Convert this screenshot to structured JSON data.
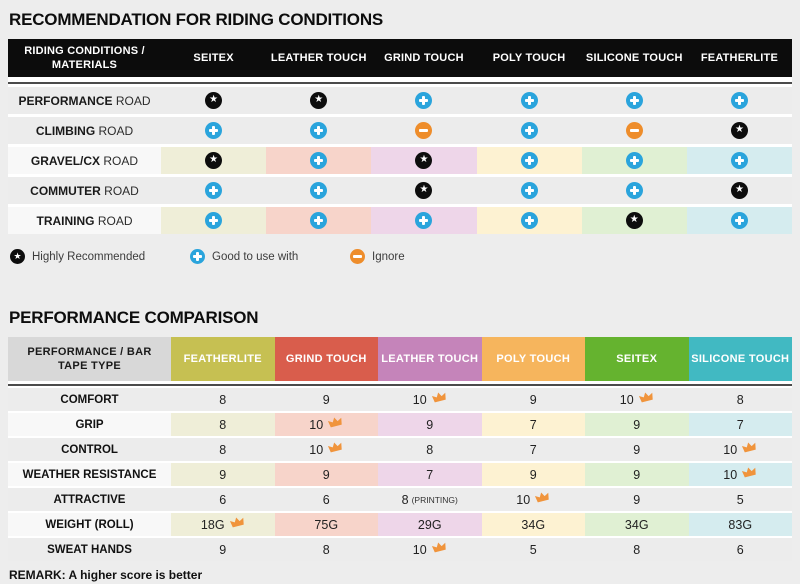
{
  "chart_data": [
    {
      "type": "table",
      "title": "RECOMMENDATION FOR RIDING CONDITIONS",
      "corner_label": "RIDING CONDITIONS / MATERIALS",
      "columns": [
        "SEITEX",
        "LEATHER TOUCH",
        "GRIND TOUCH",
        "POLY TOUCH",
        "SILICONE TOUCH",
        "FEATHERLITE"
      ],
      "rows": [
        {
          "label": "PERFORMANCE ROAD",
          "tinted": false,
          "values": [
            "star",
            "star",
            "plus",
            "plus",
            "plus",
            "plus"
          ]
        },
        {
          "label": "CLIMBING ROAD",
          "tinted": false,
          "values": [
            "plus",
            "plus",
            "minus",
            "plus",
            "minus",
            "star"
          ]
        },
        {
          "label": "GRAVEL/CX ROAD",
          "tinted": true,
          "values": [
            "star",
            "plus",
            "star",
            "plus",
            "plus",
            "plus"
          ]
        },
        {
          "label": "COMMUTER ROAD",
          "tinted": false,
          "values": [
            "plus",
            "plus",
            "star",
            "plus",
            "plus",
            "star"
          ]
        },
        {
          "label": "TRAINING ROAD",
          "tinted": true,
          "values": [
            "plus",
            "plus",
            "plus",
            "plus",
            "star",
            "plus"
          ]
        }
      ],
      "tint_colors": [
        "#efeed8",
        "#f7d4ca",
        "#eed6e9",
        "#fdf2d2",
        "#e0f0d3",
        "#d5ecef"
      ],
      "symbol_legend": [
        {
          "symbol": "star",
          "label": "Highly Recommended",
          "color": "#0d0d0d"
        },
        {
          "symbol": "plus",
          "label": "Good to use with",
          "color": "#2aa4dc"
        },
        {
          "symbol": "minus",
          "label": "Ignore",
          "color": "#ee8d2b"
        }
      ]
    },
    {
      "type": "table",
      "title": "PERFORMANCE COMPARISON",
      "corner_label": "PERFORMANCE / BAR TAPE TYPE",
      "columns": [
        {
          "label": "FEATHERLITE",
          "color": "#c6c052",
          "tint": "#efeed8"
        },
        {
          "label": "GRIND TOUCH",
          "color": "#d95d4c",
          "tint": "#f7d4ca"
        },
        {
          "label": "LEATHER TOUCH",
          "color": "#c584ba",
          "tint": "#eed6e9"
        },
        {
          "label": "POLY TOUCH",
          "color": "#f6b55d",
          "tint": "#fdf2d2"
        },
        {
          "label": "SEITEX",
          "color": "#65b32f",
          "tint": "#e0f0d3"
        },
        {
          "label": "SILICONE TOUCH",
          "color": "#41b9c2",
          "tint": "#d5ecef"
        }
      ],
      "best_marker": "crown",
      "best_marker_color": "#f0943c",
      "rows": [
        {
          "label": "COMFORT",
          "tinted": false,
          "cells": [
            {
              "value": "8"
            },
            {
              "value": "9"
            },
            {
              "value": "10",
              "best": true
            },
            {
              "value": "9"
            },
            {
              "value": "10",
              "best": true
            },
            {
              "value": "8"
            }
          ]
        },
        {
          "label": "GRIP",
          "tinted": true,
          "cells": [
            {
              "value": "8"
            },
            {
              "value": "10",
              "best": true
            },
            {
              "value": "9"
            },
            {
              "value": "7"
            },
            {
              "value": "9"
            },
            {
              "value": "7"
            }
          ]
        },
        {
          "label": "CONTROL",
          "tinted": false,
          "cells": [
            {
              "value": "8"
            },
            {
              "value": "10",
              "best": true
            },
            {
              "value": "8"
            },
            {
              "value": "7"
            },
            {
              "value": "9"
            },
            {
              "value": "10",
              "best": true
            }
          ]
        },
        {
          "label": "WEATHER RESISTANCE",
          "tinted": true,
          "cells": [
            {
              "value": "9"
            },
            {
              "value": "9"
            },
            {
              "value": "7"
            },
            {
              "value": "9"
            },
            {
              "value": "9"
            },
            {
              "value": "10",
              "best": true
            }
          ]
        },
        {
          "label": "ATTRACTIVE",
          "tinted": false,
          "cells": [
            {
              "value": "6"
            },
            {
              "value": "6"
            },
            {
              "value": "8",
              "note": "(PRINTING)"
            },
            {
              "value": "10",
              "best": true
            },
            {
              "value": "9"
            },
            {
              "value": "5"
            }
          ]
        },
        {
          "label": "WEIGHT (ROLL)",
          "tinted": true,
          "cells": [
            {
              "value": "18G",
              "best": true
            },
            {
              "value": "75G"
            },
            {
              "value": "29G"
            },
            {
              "value": "34G"
            },
            {
              "value": "34G"
            },
            {
              "value": "83G"
            }
          ]
        },
        {
          "label": "SWEAT HANDS",
          "tinted": false,
          "cells": [
            {
              "value": "9"
            },
            {
              "value": "8"
            },
            {
              "value": "10",
              "best": true
            },
            {
              "value": "5"
            },
            {
              "value": "8"
            },
            {
              "value": "6"
            }
          ]
        }
      ],
      "remark": "REMARK: A higher score is better"
    }
  ]
}
